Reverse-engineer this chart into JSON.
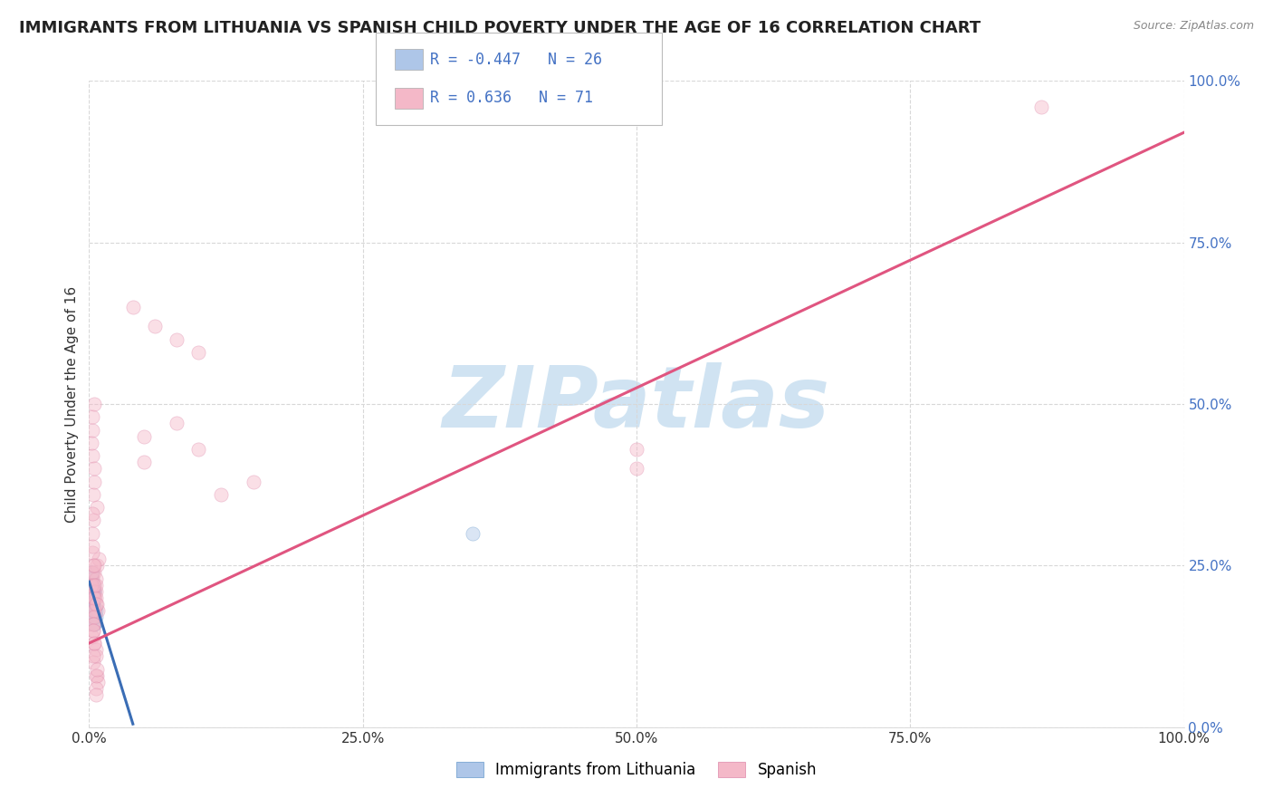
{
  "title": "IMMIGRANTS FROM LITHUANIA VS SPANISH CHILD POVERTY UNDER THE AGE OF 16 CORRELATION CHART",
  "source": "Source: ZipAtlas.com",
  "ylabel": "Child Poverty Under the Age of 16",
  "xlabel": "",
  "xlim": [
    0,
    1
  ],
  "ylim": [
    0,
    1
  ],
  "xticks": [
    0,
    0.25,
    0.5,
    0.75,
    1.0
  ],
  "yticks": [
    0,
    0.25,
    0.5,
    0.75,
    1.0
  ],
  "xticklabels": [
    "0.0%",
    "25.0%",
    "50.0%",
    "75.0%",
    "100.0%"
  ],
  "yticklabels": [
    "0.0%",
    "25.0%",
    "50.0%",
    "75.0%",
    "100.0%"
  ],
  "legend_entries": [
    {
      "label": "Immigrants from Lithuania",
      "R": -0.447,
      "N": 26,
      "color": "#aec6e8"
    },
    {
      "label": "Spanish",
      "R": 0.636,
      "N": 71,
      "color": "#f4b8c8"
    }
  ],
  "blue_scatter_x": [
    0.002,
    0.003,
    0.004,
    0.005,
    0.006,
    0.003,
    0.004,
    0.005,
    0.002,
    0.003,
    0.004,
    0.003,
    0.004,
    0.003,
    0.005,
    0.004,
    0.003,
    0.002,
    0.003,
    0.004,
    0.005,
    0.006,
    0.003,
    0.004,
    0.005,
    0.35
  ],
  "blue_scatter_y": [
    0.22,
    0.2,
    0.19,
    0.18,
    0.17,
    0.21,
    0.2,
    0.21,
    0.23,
    0.19,
    0.18,
    0.22,
    0.17,
    0.2,
    0.16,
    0.19,
    0.21,
    0.24,
    0.2,
    0.22,
    0.17,
    0.18,
    0.19,
    0.21,
    0.16,
    0.3
  ],
  "pink_scatter_x": [
    0.001,
    0.002,
    0.003,
    0.004,
    0.005,
    0.006,
    0.007,
    0.008,
    0.009,
    0.003,
    0.004,
    0.005,
    0.006,
    0.007,
    0.005,
    0.004,
    0.003,
    0.002,
    0.006,
    0.004,
    0.005,
    0.003,
    0.004,
    0.005,
    0.006,
    0.003,
    0.004,
    0.005,
    0.006,
    0.003,
    0.005,
    0.004,
    0.003,
    0.005,
    0.006,
    0.007,
    0.004,
    0.003,
    0.005,
    0.006,
    0.004,
    0.007,
    0.005,
    0.006,
    0.008,
    0.003,
    0.004,
    0.005,
    0.006,
    0.007,
    0.002,
    0.003,
    0.004,
    0.005,
    0.003,
    0.004,
    0.005,
    0.006,
    0.05,
    0.05,
    0.1,
    0.15,
    0.08,
    0.12,
    0.04,
    0.06,
    0.08,
    0.1,
    0.5,
    0.5,
    0.87
  ],
  "pink_scatter_y": [
    0.22,
    0.19,
    0.23,
    0.2,
    0.24,
    0.21,
    0.25,
    0.18,
    0.26,
    0.17,
    0.22,
    0.2,
    0.23,
    0.19,
    0.21,
    0.18,
    0.24,
    0.22,
    0.2,
    0.25,
    0.18,
    0.27,
    0.16,
    0.2,
    0.22,
    0.28,
    0.15,
    0.22,
    0.19,
    0.3,
    0.17,
    0.32,
    0.14,
    0.25,
    0.12,
    0.34,
    0.1,
    0.33,
    0.13,
    0.11,
    0.36,
    0.08,
    0.38,
    0.08,
    0.07,
    0.42,
    0.16,
    0.4,
    0.06,
    0.09,
    0.44,
    0.46,
    0.11,
    0.13,
    0.48,
    0.15,
    0.5,
    0.05,
    0.45,
    0.41,
    0.43,
    0.38,
    0.47,
    0.36,
    0.65,
    0.62,
    0.6,
    0.58,
    0.43,
    0.4,
    0.96
  ],
  "blue_line_x": [
    0.0,
    0.04
  ],
  "blue_line_y": [
    0.225,
    0.005
  ],
  "pink_line_x": [
    0.0,
    1.0
  ],
  "pink_line_y": [
    0.13,
    0.92
  ],
  "watermark": "ZIPatlas",
  "watermark_color": "#c8dff0",
  "scatter_size": 120,
  "scatter_alpha": 0.45,
  "background_color": "#ffffff",
  "grid_color": "#d8d8d8",
  "title_fontsize": 13,
  "axis_label_fontsize": 11,
  "tick_fontsize": 11,
  "tick_color_x": "#333333",
  "tick_color_y": "#4472c4",
  "legend_R_color": "#4472c4",
  "legend_box_color": "#ffffff",
  "legend_box_edge": "#cccccc"
}
